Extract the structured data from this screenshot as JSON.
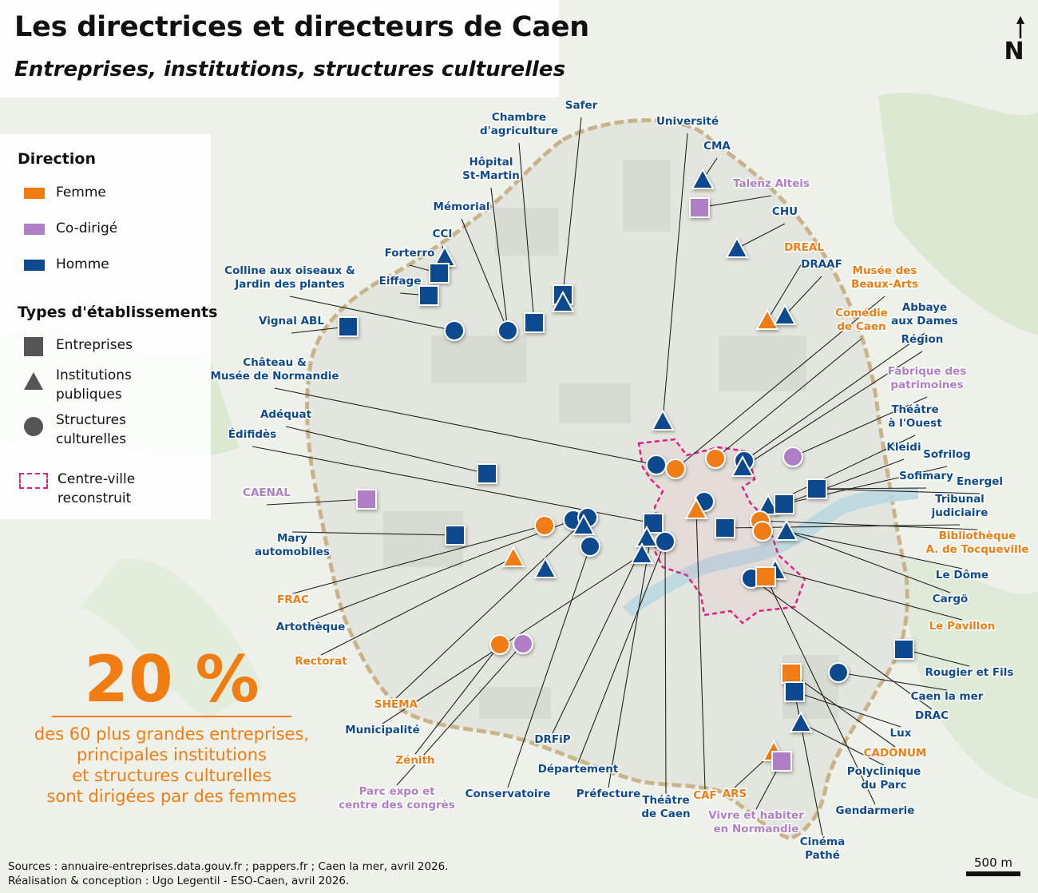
{
  "title": "Les directrices et directeurs de Caen",
  "subtitle": "Entreprises, institutions, structures culturelles",
  "legend": {
    "direction_title": "Direction",
    "direction": [
      {
        "key": "femme",
        "label": "Femme",
        "color": "#f07c12"
      },
      {
        "key": "codir",
        "label": "Co-dirigé",
        "color": "#b07ec6"
      },
      {
        "key": "homme",
        "label": "Homme",
        "color": "#0d4a8f"
      }
    ],
    "types_title": "Types d'établissements",
    "types": [
      {
        "shape": "square",
        "label": "Entreprises"
      },
      {
        "shape": "triangle",
        "label": "Institutions\npubliques"
      },
      {
        "shape": "circle",
        "label": "Structures\nculturelles"
      }
    ],
    "centre_label": "Centre-ville\nreconstruit"
  },
  "stat": {
    "value": "20 %",
    "text": "des 60 plus grandes entreprises,\nprincipales institutions\net structures culturelles\nsont dirigées par des femmes"
  },
  "sources": "Sources : annuaire-entreprises.data.gouv.fr ; pappers.fr ; Caen la mer, avril 2026.\nRéalisation & conception : Ugo Legentil - ESO-Caen, avril 2026.",
  "scale_label": "500 m",
  "north_label": "N",
  "labels": [
    {
      "text": "Safer",
      "cls": "homme"
    },
    {
      "text": "Chambre\nd'agriculture",
      "cls": "homme"
    },
    {
      "text": "Université",
      "cls": "homme"
    },
    {
      "text": "CMA",
      "cls": "homme"
    },
    {
      "text": "Hôpital\nSt-Martin",
      "cls": "homme"
    },
    {
      "text": "Talenz Alteis",
      "cls": "codir"
    },
    {
      "text": "Mémorial",
      "cls": "homme"
    },
    {
      "text": "CHU",
      "cls": "homme"
    },
    {
      "text": "CCI",
      "cls": "homme"
    },
    {
      "text": "DREAL",
      "cls": "femme"
    },
    {
      "text": "Forterro",
      "cls": "homme"
    },
    {
      "text": "DRAAF",
      "cls": "homme"
    },
    {
      "text": "Colline aux oiseaux &\nJardin des plantes",
      "cls": "homme"
    },
    {
      "text": "Musée des\nBeaux-Arts",
      "cls": "femme"
    },
    {
      "text": "Eiffage",
      "cls": "homme"
    },
    {
      "text": "Comédie\nde Caen",
      "cls": "femme"
    },
    {
      "text": "Abbaye\naux Dames",
      "cls": "homme"
    },
    {
      "text": "Vignal ABL",
      "cls": "homme"
    },
    {
      "text": "Région",
      "cls": "homme"
    },
    {
      "text": "Château &\nMusée de Normandie",
      "cls": "homme"
    },
    {
      "text": "Fabrique des\npatrimoines",
      "cls": "codir"
    },
    {
      "text": "Théâtre\nà l'Ouest",
      "cls": "homme"
    },
    {
      "text": "Adéquat",
      "cls": "homme"
    },
    {
      "text": "Édifidès",
      "cls": "homme"
    },
    {
      "text": "Kleidi",
      "cls": "homme"
    },
    {
      "text": "Sofrilog",
      "cls": "homme"
    },
    {
      "text": "Sofimary",
      "cls": "homme"
    },
    {
      "text": "Energel",
      "cls": "homme"
    },
    {
      "text": "CAENAL",
      "cls": "codir"
    },
    {
      "text": "Tribunal\njudiciaire",
      "cls": "homme"
    },
    {
      "text": "Mary\nautomobiles",
      "cls": "homme"
    },
    {
      "text": "Bibliothèque\nA. de Tocqueville",
      "cls": "femme"
    },
    {
      "text": "Le Dôme",
      "cls": "homme"
    },
    {
      "text": "FRAC",
      "cls": "femme"
    },
    {
      "text": "Cargö",
      "cls": "homme"
    },
    {
      "text": "Artothèque",
      "cls": "homme"
    },
    {
      "text": "Le Pavillon",
      "cls": "femme"
    },
    {
      "text": "Rectorat",
      "cls": "femme"
    },
    {
      "text": "Rougier et Fils",
      "cls": "homme"
    },
    {
      "text": "Caen la mer",
      "cls": "homme"
    },
    {
      "text": "DRAC",
      "cls": "homme"
    },
    {
      "text": "SHEMA",
      "cls": "femme"
    },
    {
      "text": "Municipalité",
      "cls": "homme"
    },
    {
      "text": "Lux",
      "cls": "homme"
    },
    {
      "text": "DRFiP",
      "cls": "homme"
    },
    {
      "text": "CADONUM",
      "cls": "femme"
    },
    {
      "text": "Zénith",
      "cls": "femme"
    },
    {
      "text": "Polyclinique\ndu Parc",
      "cls": "homme"
    },
    {
      "text": "Département",
      "cls": "homme"
    },
    {
      "text": "Parc expo et\ncentre des congrès",
      "cls": "codir"
    },
    {
      "text": "Conservatoire",
      "cls": "homme"
    },
    {
      "text": "Préfecture",
      "cls": "homme"
    },
    {
      "text": "Théâtre\nde Caen",
      "cls": "homme"
    },
    {
      "text": "CAF",
      "cls": "femme"
    },
    {
      "text": "ARS",
      "cls": "femme"
    },
    {
      "text": "Gendarmerie",
      "cls": "homme"
    },
    {
      "text": "Vivre et habiter\nen Normandie",
      "cls": "codir"
    },
    {
      "text": "Cinéma\nPathé",
      "cls": "homme"
    }
  ]
}
